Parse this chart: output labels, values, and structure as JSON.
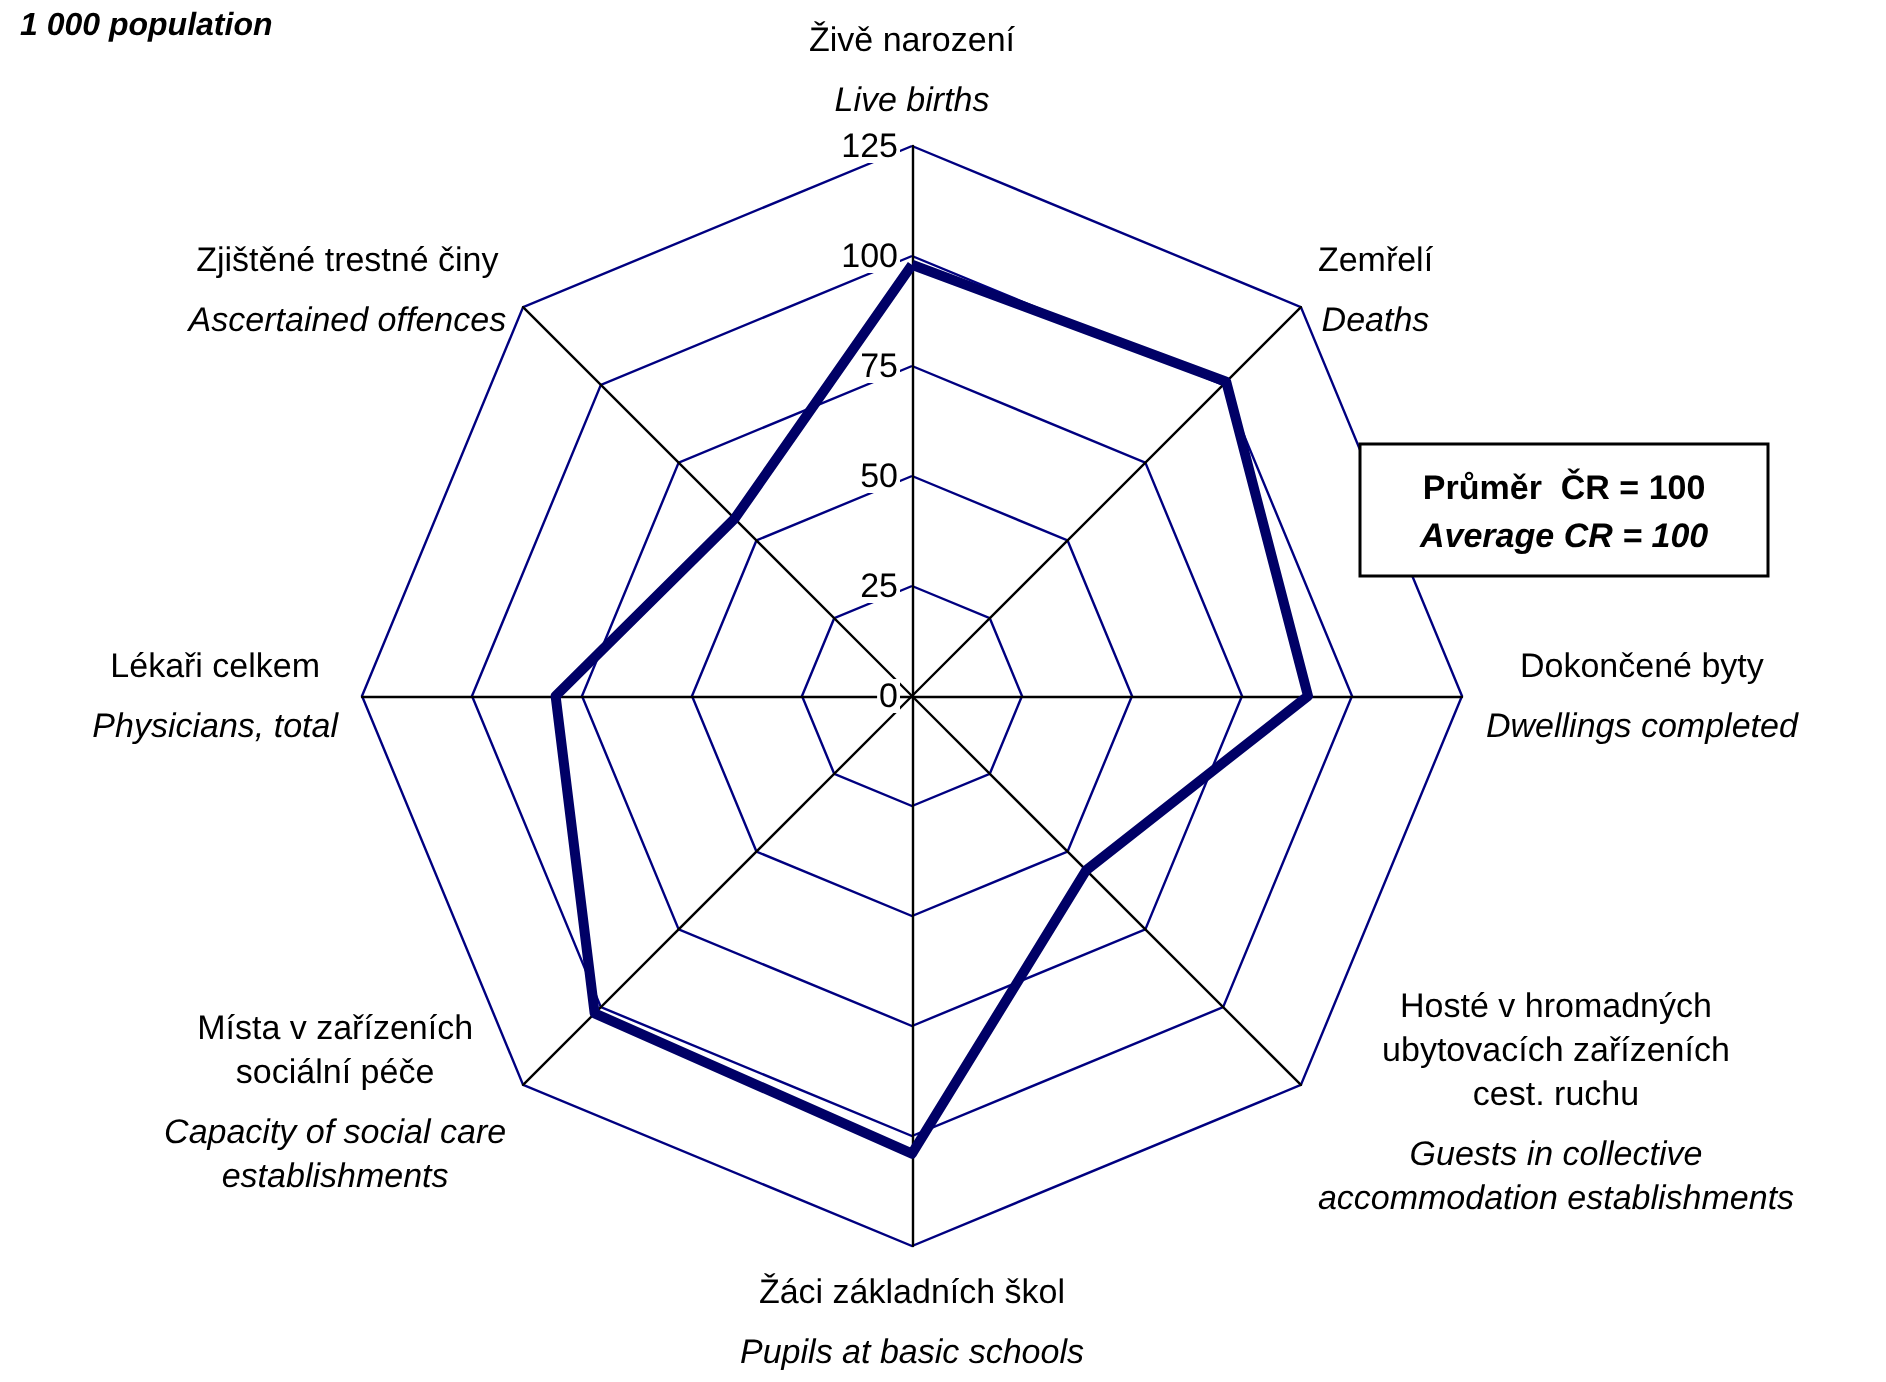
{
  "chart_data": {
    "type": "radar",
    "subtitle": "1 000 population",
    "categories": [
      "Živě narození\n\nLive births",
      "Zemřelí\n\nDeaths",
      "Dokončené byty\n\nDwellings completed",
      "Hosté v hromadných\nubytovacích zařízeních\ncest. ruchu\n\nGuests in collective\naccommodation establishments",
      "Žáci základních škol\n\nPupils at basic schools",
      "Místa v zařízeních\nsociální péče\n\nCapacity of social care\nestablishments",
      "Lékaři celkem\n\nPhysicians, total",
      "Zjištěné trestné činy\n\nAscertained offences"
    ],
    "series": [
      {
        "color": "#000066",
        "values": [
          98,
          101,
          90,
          56,
          104,
          102,
          81,
          57
        ]
      }
    ],
    "ylim": [
      0,
      125
    ],
    "yticks": [
      0,
      25,
      50,
      75,
      100,
      125
    ],
    "grid": true,
    "marker": "none",
    "line_style": "solid",
    "annotations": [
      "Průměr  ČR = 100\nAverage CR = 100"
    ]
  }
}
